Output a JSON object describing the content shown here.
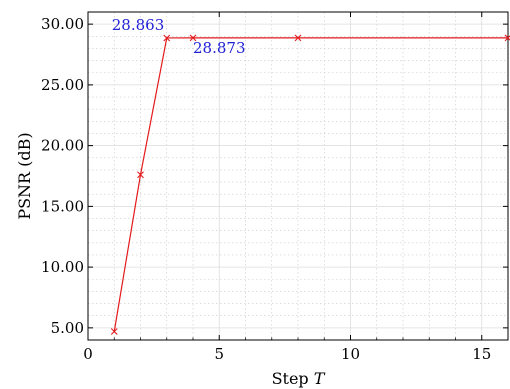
{
  "chart_data": {
    "type": "line",
    "title": "",
    "xlabel": "Step",
    "xlabel_var": "T",
    "ylabel": "PSNR (dB)",
    "xlim": [
      0,
      16
    ],
    "ylim": [
      4.0,
      31.0
    ],
    "x_ticks": [
      0,
      5,
      10,
      15
    ],
    "y_ticks": [
      5.0,
      10.0,
      15.0,
      20.0,
      25.0,
      30.0
    ],
    "y_tick_labels": [
      "5.00",
      "10.00",
      "15.00",
      "20.00",
      "25.00",
      "30.00"
    ],
    "grid": true,
    "minor_grid": true,
    "series": [
      {
        "color": "#e41a1c",
        "marker": "x",
        "x": [
          1,
          2,
          3,
          4,
          8,
          16
        ],
        "y": [
          4.7,
          17.6,
          28.863,
          28.873,
          28.87,
          28.87
        ]
      }
    ],
    "annotations": [
      {
        "text": "28.863",
        "x": 3,
        "y": 28.863,
        "color": "#1f1fd6"
      },
      {
        "text": "28.873",
        "x": 4,
        "y": 28.873,
        "color": "#1f1fd6"
      }
    ]
  }
}
